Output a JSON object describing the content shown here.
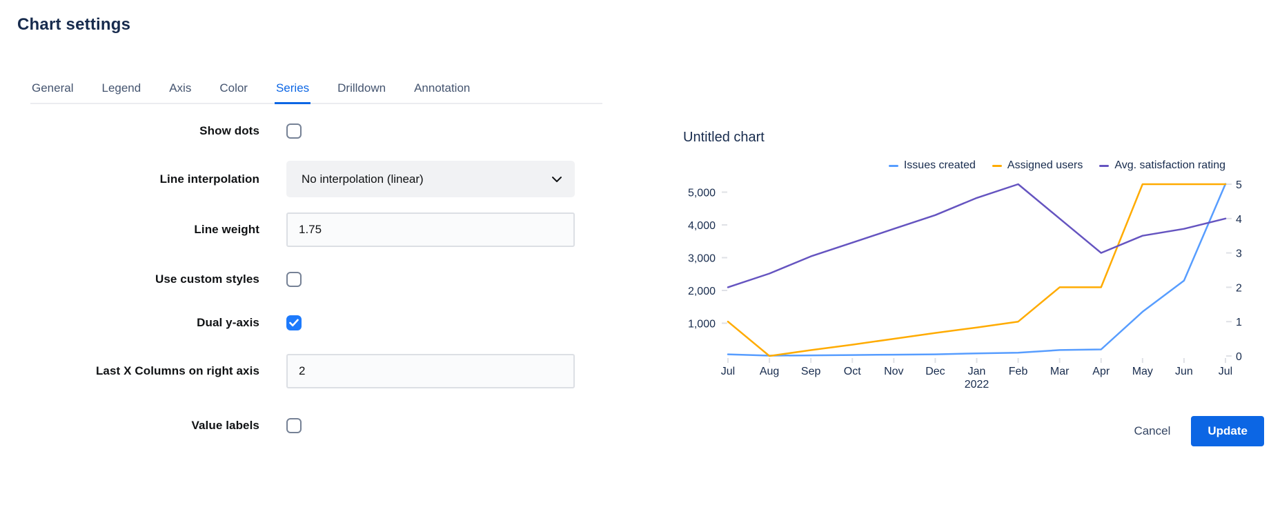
{
  "header": {
    "title": "Chart settings"
  },
  "tabs": {
    "items": [
      {
        "label": "General",
        "active": false
      },
      {
        "label": "Legend",
        "active": false
      },
      {
        "label": "Axis",
        "active": false
      },
      {
        "label": "Color",
        "active": false
      },
      {
        "label": "Series",
        "active": true
      },
      {
        "label": "Drilldown",
        "active": false
      },
      {
        "label": "Annotation",
        "active": false
      }
    ]
  },
  "form": {
    "rows": [
      {
        "type": "checkbox",
        "label": "Show dots",
        "checked": false
      },
      {
        "type": "select",
        "label": "Line interpolation",
        "value": "No interpolation (linear)"
      },
      {
        "type": "input",
        "label": "Line weight",
        "value": "1.75"
      },
      {
        "type": "checkbox",
        "label": "Use custom styles",
        "checked": false
      },
      {
        "type": "checkbox",
        "label": "Dual y-axis",
        "checked": true
      },
      {
        "type": "input",
        "label": "Last X Columns on right axis",
        "value": "2"
      },
      {
        "type": "checkbox",
        "label": "Value labels",
        "checked": false
      }
    ]
  },
  "chart_data": {
    "type": "line",
    "title": "Untitled chart",
    "x": [
      "Jul",
      "Aug",
      "Sep",
      "Oct",
      "Nov",
      "Dec",
      "Jan",
      "Feb",
      "Mar",
      "Apr",
      "May",
      "Jun",
      "Jul"
    ],
    "year_label": {
      "text": "2022",
      "under_index": 6
    },
    "left_axis": {
      "tick_values": [
        1000,
        2000,
        3000,
        4000,
        5000
      ],
      "tick_labels": [
        "1,000",
        "2,000",
        "3,000",
        "4,000",
        "5,000"
      ],
      "range": [
        0,
        5300
      ]
    },
    "right_axis": {
      "tick_values": [
        0,
        1,
        2,
        3,
        4,
        5
      ],
      "tick_labels": [
        "0",
        "1",
        "2",
        "3",
        "4",
        "5"
      ],
      "range": [
        0,
        5
      ]
    },
    "grid": false,
    "legend_position": "top-right",
    "series": [
      {
        "name": "Issues created",
        "color": "#579DFF",
        "axis": "left",
        "values": [
          50,
          10,
          20,
          30,
          40,
          50,
          80,
          100,
          180,
          200,
          1350,
          2300,
          5250
        ]
      },
      {
        "name": "Assigned users",
        "color": "#FFAB00",
        "axis": "right",
        "values": [
          1,
          0,
          0.17,
          0.33,
          0.5,
          0.67,
          0.83,
          1,
          2,
          2,
          5,
          5,
          5
        ]
      },
      {
        "name": "Avg. satisfaction rating",
        "color": "#6554C0",
        "axis": "right",
        "values": [
          2,
          2.4,
          2.9,
          3.3,
          3.7,
          4.1,
          4.6,
          5,
          4,
          3,
          3.5,
          3.7,
          4
        ]
      }
    ]
  },
  "footer": {
    "cancel_label": "Cancel",
    "update_label": "Update"
  },
  "colors": {
    "accent": "#0C66E4",
    "checkbox_checked": "#1D7AFC",
    "tick": "#DFE1E6",
    "text_dark": "#172B4D"
  }
}
